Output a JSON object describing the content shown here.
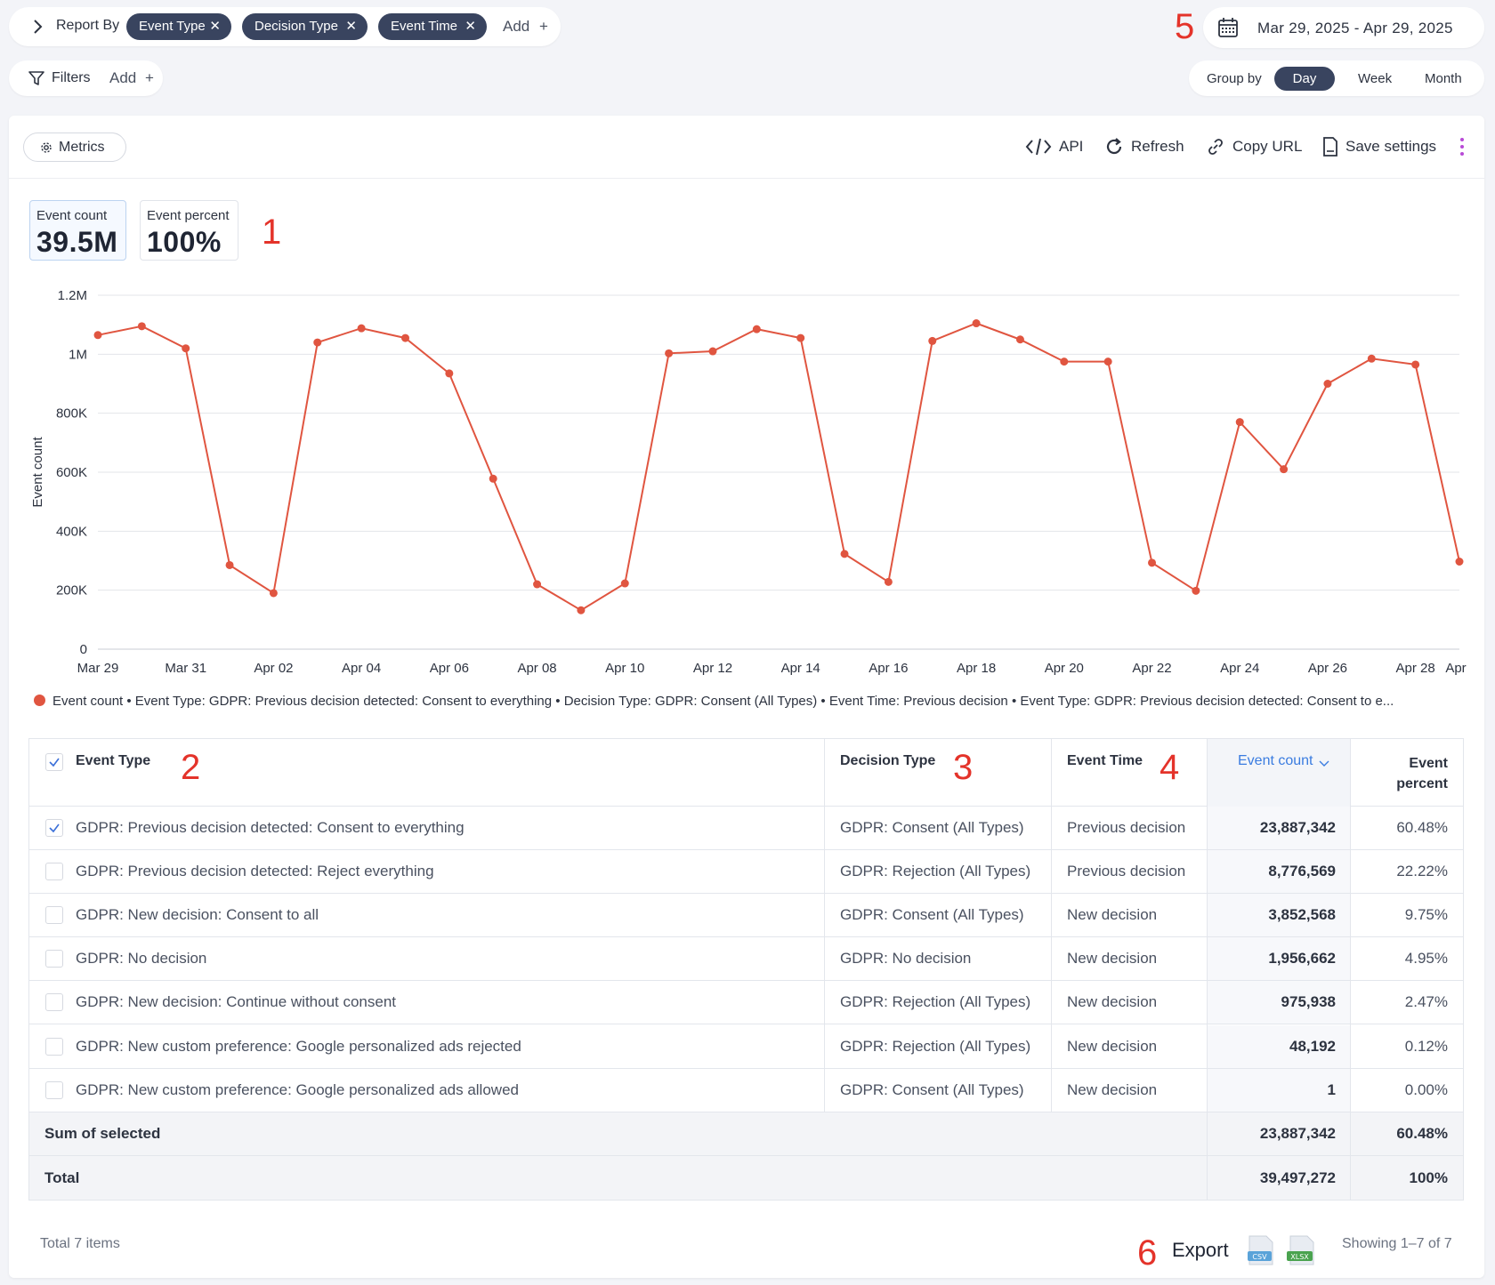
{
  "report_by": {
    "label": "Report By",
    "chips": [
      "Event Type",
      "Decision Type",
      "Event Time"
    ],
    "add_label": "Add"
  },
  "date_range": "Mar 29, 2025 - Apr 29, 2025",
  "filters": {
    "label": "Filters",
    "add_label": "Add"
  },
  "group_by": {
    "label": "Group by",
    "options": [
      "Day",
      "Week",
      "Month"
    ],
    "selected": "Day"
  },
  "toolbar": {
    "metrics_label": "Metrics",
    "api_label": "API",
    "refresh_label": "Refresh",
    "copy_url_label": "Copy URL",
    "save_settings_label": "Save settings"
  },
  "kpis": [
    {
      "label": "Event count",
      "value": "39.5M"
    },
    {
      "label": "Event percent",
      "value": "100%"
    }
  ],
  "annotations": [
    "1",
    "2",
    "3",
    "4",
    "5",
    "6"
  ],
  "chart_data": {
    "type": "line",
    "ylabel": "Event count",
    "ylim": [
      0,
      1200000
    ],
    "y_ticks": [
      "0",
      "200K",
      "400K",
      "600K",
      "800K",
      "1M",
      "1.2M"
    ],
    "x_tick_labels": [
      "Mar 29",
      "Mar 31",
      "Apr 02",
      "Apr 04",
      "Apr 06",
      "Apr 08",
      "Apr 10",
      "Apr 12",
      "Apr 14",
      "Apr 16",
      "Apr 18",
      "Apr 20",
      "Apr 22",
      "Apr 24",
      "Apr 26",
      "Apr 28",
      "Apr"
    ],
    "x": [
      "Mar 29",
      "Mar 30",
      "Mar 31",
      "Apr 01",
      "Apr 02",
      "Apr 03",
      "Apr 04",
      "Apr 05",
      "Apr 06",
      "Apr 07",
      "Apr 08",
      "Apr 09",
      "Apr 10",
      "Apr 11",
      "Apr 12",
      "Apr 13",
      "Apr 14",
      "Apr 15",
      "Apr 16",
      "Apr 17",
      "Apr 18",
      "Apr 19",
      "Apr 20",
      "Apr 21",
      "Apr 22",
      "Apr 23",
      "Apr 24",
      "Apr 25",
      "Apr 26",
      "Apr 27",
      "Apr 28",
      "Apr 29"
    ],
    "series": [
      {
        "name": "Event count • Event Type: GDPR: Previous decision detected: Consent to everything • Decision Type: GDPR: Consent (All Types) • Event Time: Previous decision • Event Type: GDPR: Previous decision detected: Consent to e...",
        "color": "#e05540",
        "values": [
          1065000,
          1095000,
          1020000,
          285000,
          190000,
          1040000,
          1088000,
          1055000,
          935000,
          578000,
          220000,
          132000,
          223000,
          1003000,
          1010000,
          1085000,
          1055000,
          323000,
          228000,
          1045000,
          1105000,
          1050000,
          975000,
          975000,
          293000,
          198000,
          770000,
          610000,
          900000,
          985000,
          965000,
          297000
        ]
      }
    ],
    "grid": true,
    "legend": "bottom"
  },
  "legend_text": "Event count • Event Type: GDPR: Previous decision detected: Consent to everything • Decision Type: GDPR: Consent (All Types) • Event Time: Previous decision • Event Type: GDPR: Previous decision detected: Consent to e...",
  "table": {
    "headers": {
      "event_type": "Event Type",
      "decision_type": "Decision Type",
      "event_time": "Event Time",
      "event_count": "Event count",
      "event_percent_1": "Event",
      "event_percent_2": "percent"
    },
    "rows": [
      {
        "checked": true,
        "event_type": "GDPR: Previous decision detected: Consent to everything",
        "decision_type": "GDPR: Consent (All Types)",
        "event_time": "Previous decision",
        "event_count": "23,887,342",
        "event_percent": "60.48%"
      },
      {
        "checked": false,
        "event_type": "GDPR: Previous decision detected: Reject everything",
        "decision_type": "GDPR: Rejection (All Types)",
        "event_time": "Previous decision",
        "event_count": "8,776,569",
        "event_percent": "22.22%"
      },
      {
        "checked": false,
        "event_type": "GDPR: New decision: Consent to all",
        "decision_type": "GDPR: Consent (All Types)",
        "event_time": "New decision",
        "event_count": "3,852,568",
        "event_percent": "9.75%"
      },
      {
        "checked": false,
        "event_type": "GDPR: No decision",
        "decision_type": "GDPR: No decision",
        "event_time": "New decision",
        "event_count": "1,956,662",
        "event_percent": "4.95%"
      },
      {
        "checked": false,
        "event_type": "GDPR: New decision: Continue without consent",
        "decision_type": "GDPR: Rejection (All Types)",
        "event_time": "New decision",
        "event_count": "975,938",
        "event_percent": "2.47%"
      },
      {
        "checked": false,
        "event_type": "GDPR: New custom preference: Google personalized ads rejected",
        "decision_type": "GDPR: Rejection (All Types)",
        "event_time": "New decision",
        "event_count": "48,192",
        "event_percent": "0.12%"
      },
      {
        "checked": false,
        "event_type": "GDPR: New custom preference: Google personalized ads allowed",
        "decision_type": "GDPR: Consent (All Types)",
        "event_time": "New decision",
        "event_count": "1",
        "event_percent": "0.00%"
      }
    ],
    "sum_selected": {
      "label": "Sum of selected",
      "event_count": "23,887,342",
      "event_percent": "60.48%"
    },
    "total": {
      "label": "Total",
      "event_count": "39,497,272",
      "event_percent": "100%"
    }
  },
  "footer": {
    "total_items": "Total 7 items",
    "export_label": "Export",
    "csv_label": "CSV",
    "xlsx_label": "XLSX",
    "showing": "Showing 1–7 of 7"
  }
}
